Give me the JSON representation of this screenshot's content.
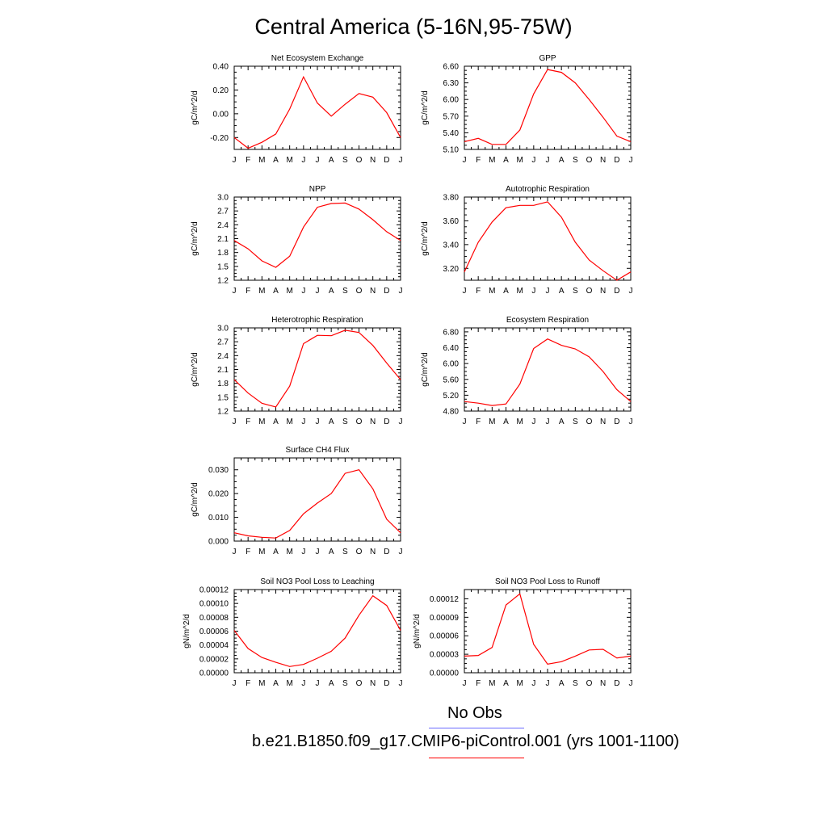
{
  "title": "Central America (5-16N,95-75W)",
  "colors": {
    "series": "#ff0000",
    "obs": "#6a6aff",
    "axis": "#000000"
  },
  "legend": {
    "obs_label": "No Obs",
    "model_label": "b.e21.B1850.f09_g17.CMIP6-piControl.001 (yrs 1001-1100)"
  },
  "chart_data": [
    {
      "type": "line",
      "title": "Net Ecosystem Exchange",
      "ylabel": "gC/m^2/d",
      "xlabel": "",
      "categories": [
        "J",
        "F",
        "M",
        "A",
        "M",
        "J",
        "J",
        "A",
        "S",
        "O",
        "N",
        "D",
        "J"
      ],
      "values": [
        -0.2,
        -0.29,
        -0.24,
        -0.17,
        0.04,
        0.31,
        0.09,
        -0.02,
        0.08,
        0.17,
        0.14,
        0.01,
        -0.2
      ],
      "ylim": [
        -0.3,
        0.4
      ],
      "yticks": [
        -0.2,
        0.0,
        0.2,
        0.4
      ],
      "yticklabels": [
        "-0.20",
        "0.00",
        "0.20",
        "0.40"
      ]
    },
    {
      "type": "line",
      "title": "GPP",
      "ylabel": "gC/m^2/d",
      "xlabel": "",
      "categories": [
        "J",
        "F",
        "M",
        "A",
        "M",
        "J",
        "J",
        "A",
        "S",
        "O",
        "N",
        "D",
        "J"
      ],
      "values": [
        5.24,
        5.3,
        5.19,
        5.19,
        5.45,
        6.1,
        6.54,
        6.49,
        6.3,
        6.0,
        5.68,
        5.34,
        5.24
      ],
      "ylim": [
        5.1,
        6.6
      ],
      "yticks": [
        5.1,
        5.4,
        5.7,
        6.0,
        6.3,
        6.6
      ],
      "yticklabels": [
        "5.10",
        "5.40",
        "5.70",
        "6.00",
        "6.30",
        "6.60"
      ]
    },
    {
      "type": "line",
      "title": "NPP",
      "ylabel": "gC/m^2/d",
      "xlabel": "",
      "categories": [
        "J",
        "F",
        "M",
        "A",
        "M",
        "J",
        "J",
        "A",
        "S",
        "O",
        "N",
        "D",
        "J"
      ],
      "values": [
        2.06,
        1.88,
        1.62,
        1.48,
        1.72,
        2.35,
        2.78,
        2.86,
        2.87,
        2.74,
        2.51,
        2.25,
        2.06
      ],
      "ylim": [
        1.2,
        3.0
      ],
      "yticks": [
        1.2,
        1.5,
        1.8,
        2.1,
        2.4,
        2.7,
        3.0
      ],
      "yticklabels": [
        "1.2",
        "1.5",
        "1.8",
        "2.1",
        "2.4",
        "2.7",
        "3.0"
      ]
    },
    {
      "type": "line",
      "title": "Autotrophic Respiration",
      "ylabel": "gC/m^2/d",
      "xlabel": "",
      "categories": [
        "J",
        "F",
        "M",
        "A",
        "M",
        "J",
        "J",
        "A",
        "S",
        "O",
        "N",
        "D",
        "J"
      ],
      "values": [
        3.17,
        3.42,
        3.59,
        3.71,
        3.73,
        3.73,
        3.76,
        3.63,
        3.42,
        3.27,
        3.18,
        3.1,
        3.17
      ],
      "ylim": [
        3.1,
        3.8
      ],
      "yticks": [
        3.2,
        3.4,
        3.6,
        3.8
      ],
      "yticklabels": [
        "3.20",
        "3.40",
        "3.60",
        "3.80"
      ]
    },
    {
      "type": "line",
      "title": "Heterotrophic Respiration",
      "ylabel": "gC/m^2/d",
      "xlabel": "",
      "categories": [
        "J",
        "F",
        "M",
        "A",
        "M",
        "J",
        "J",
        "A",
        "S",
        "O",
        "N",
        "D",
        "J"
      ],
      "values": [
        1.88,
        1.59,
        1.37,
        1.29,
        1.74,
        2.66,
        2.84,
        2.83,
        2.95,
        2.9,
        2.62,
        2.24,
        1.88
      ],
      "ylim": [
        1.2,
        3.0
      ],
      "yticks": [
        1.2,
        1.5,
        1.8,
        2.1,
        2.4,
        2.7,
        3.0
      ],
      "yticklabels": [
        "1.2",
        "1.5",
        "1.8",
        "2.1",
        "2.4",
        "2.7",
        "3.0"
      ]
    },
    {
      "type": "line",
      "title": "Ecosystem Respiration",
      "ylabel": "gC/m^2/d",
      "xlabel": "",
      "categories": [
        "J",
        "F",
        "M",
        "A",
        "M",
        "J",
        "J",
        "A",
        "S",
        "O",
        "N",
        "D",
        "J"
      ],
      "values": [
        5.04,
        5.0,
        4.94,
        4.98,
        5.48,
        6.38,
        6.62,
        6.46,
        6.37,
        6.17,
        5.8,
        5.34,
        5.04
      ],
      "ylim": [
        4.8,
        6.9
      ],
      "yticks": [
        4.8,
        5.2,
        5.6,
        6.0,
        6.4,
        6.8
      ],
      "yticklabels": [
        "4.80",
        "5.20",
        "5.60",
        "6.00",
        "6.40",
        "6.80"
      ]
    },
    {
      "type": "line",
      "title": "Surface CH4 Flux",
      "ylabel": "gC/m^2/d",
      "xlabel": "",
      "categories": [
        "J",
        "F",
        "M",
        "A",
        "M",
        "J",
        "J",
        "A",
        "S",
        "O",
        "N",
        "D",
        "J"
      ],
      "values": [
        0.0035,
        0.0022,
        0.0016,
        0.0013,
        0.0045,
        0.0115,
        0.016,
        0.02,
        0.0285,
        0.03,
        0.022,
        0.0092,
        0.0035
      ],
      "ylim": [
        0.0,
        0.035
      ],
      "yticks": [
        0.0,
        0.01,
        0.02,
        0.03
      ],
      "yticklabels": [
        "0.000",
        "0.010",
        "0.020",
        "0.030"
      ]
    },
    {
      "type": "line",
      "title": "Soil NO3 Pool Loss to Leaching",
      "ylabel": "gN/m^2/d",
      "xlabel": "",
      "categories": [
        "J",
        "F",
        "M",
        "A",
        "M",
        "J",
        "J",
        "A",
        "S",
        "O",
        "N",
        "D",
        "J"
      ],
      "values": [
        6.1e-05,
        3.5e-05,
        2.2e-05,
        1.5e-05,
        9e-06,
        1.2e-05,
        2.1e-05,
        3.1e-05,
        5e-05,
        8.3e-05,
        0.000111,
        9.7e-05,
        6.1e-05
      ],
      "ylim": [
        0.0,
        0.00012
      ],
      "yticks": [
        0.0,
        2e-05,
        4e-05,
        6e-05,
        8e-05,
        0.0001,
        0.00012
      ],
      "yticklabels": [
        "0.00000",
        "0.00002",
        "0.00004",
        "0.00006",
        "0.00008",
        "0.00010",
        "0.00012"
      ]
    },
    {
      "type": "line",
      "title": "Soil NO3 Pool Loss to Runoff",
      "ylabel": "gN/m^2/d",
      "xlabel": "",
      "categories": [
        "J",
        "F",
        "M",
        "A",
        "M",
        "J",
        "J",
        "A",
        "S",
        "O",
        "N",
        "D",
        "J"
      ],
      "values": [
        2.7e-05,
        2.8e-05,
        4.1e-05,
        0.00011,
        0.000128,
        4.6e-05,
        1.4e-05,
        1.8e-05,
        2.7e-05,
        3.7e-05,
        3.8e-05,
        2.4e-05,
        2.7e-05
      ],
      "ylim": [
        0.0,
        0.000135
      ],
      "yticks": [
        0.0,
        3e-05,
        6e-05,
        9e-05,
        0.00012
      ],
      "yticklabels": [
        "0.00000",
        "0.00003",
        "0.00006",
        "0.00009",
        "0.00012"
      ]
    }
  ]
}
